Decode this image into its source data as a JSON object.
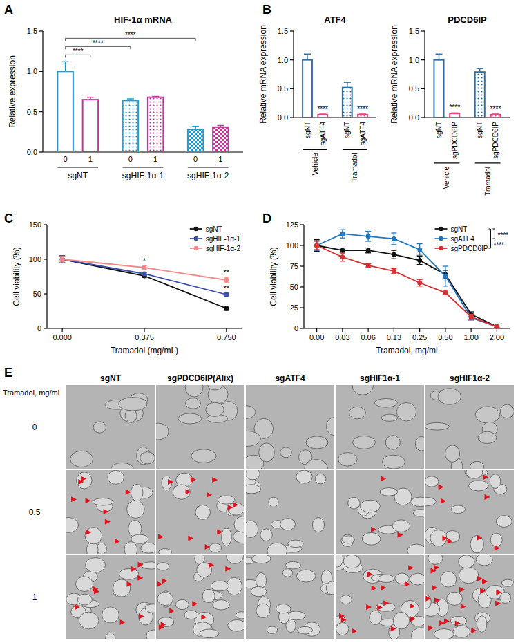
{
  "panels": [
    "A",
    "B",
    "C",
    "D",
    "E"
  ],
  "chart_data": [
    {
      "type": "bar",
      "title": "HIF-1α mRNA",
      "ylabel": "Relative expression",
      "categories": [
        "0",
        "1",
        "0",
        "1",
        "0",
        "1"
      ],
      "groups": [
        "sgNT",
        "sgHIF-1α-1",
        "sgHIF-1α-2"
      ],
      "values": [
        1.0,
        0.65,
        0.64,
        0.68,
        0.28,
        0.31
      ],
      "errors": [
        0.12,
        0.03,
        0.02,
        0.01,
        0.04,
        0.02
      ],
      "colors": [
        "#1e9ad6",
        "#c2379a",
        "#1e9ad6",
        "#c2379a",
        "#1e9ad6",
        "#c2379a"
      ],
      "ylim": [
        0,
        1.5
      ],
      "yticks": [
        {
          "value": 0,
          "label": "0.0"
        },
        0.5,
        {
          "value": 1,
          "label": "1.0"
        },
        1.5
      ],
      "brackets": [
        {
          "from": 0,
          "to": 1,
          "label": "****"
        },
        {
          "from": 0,
          "to": 2,
          "label": "****"
        },
        {
          "from": 0,
          "to": 4,
          "label": "****"
        }
      ]
    },
    {
      "type": "bar",
      "title": "ATF4",
      "ylabel": "Relative mRNA expression",
      "categories": [
        "sgNT",
        "sgATF4",
        "sgNT",
        "sgATF4"
      ],
      "groups": [
        "Vehicle",
        "Tramadol"
      ],
      "values": [
        1.0,
        0.05,
        0.52,
        0.05
      ],
      "errors": [
        0.1,
        0.01,
        0.09,
        0.01
      ],
      "colors": [
        "#2f6fa8",
        "#e8457c",
        "#2f6fa8",
        "#e8457c"
      ],
      "ylim": [
        0,
        1.5
      ],
      "yticks": [
        {
          "value": 0,
          "label": "0.0"
        },
        0.5,
        {
          "value": 1,
          "label": "1.0"
        },
        1.5
      ],
      "significance": [
        null,
        "****",
        null,
        "****"
      ]
    },
    {
      "type": "bar",
      "title": "PDCD6IP",
      "ylabel": "Relative mRNA expression",
      "categories": [
        "sgNT",
        "sgPDCD6IP",
        "sgNT",
        "sgPDCD6IP"
      ],
      "groups": [
        "Vehicle",
        "Tramadol"
      ],
      "values": [
        1.0,
        0.07,
        0.79,
        0.05
      ],
      "errors": [
        0.1,
        0.01,
        0.06,
        0.01
      ],
      "colors": [
        "#2f6fa8",
        "#e8457c",
        "#2f6fa8",
        "#e8457c"
      ],
      "ylim": [
        0,
        1.5
      ],
      "yticks": [
        {
          "value": 0,
          "label": "0.0"
        },
        0.5,
        {
          "value": 1,
          "label": "1.0"
        },
        1.5
      ],
      "significance": [
        null,
        "****",
        null,
        "****"
      ]
    },
    {
      "type": "line",
      "xlabel": "Tramadol (mg/mL)",
      "ylabel": "Cell viability (%)",
      "marker": "circle",
      "x": [
        0,
        0.375,
        0.75
      ],
      "xlim": [
        -0.07,
        0.82
      ],
      "xticks": [
        {
          "value": 0,
          "label": "0.000"
        },
        0.375,
        {
          "value": 0.75,
          "label": "0.750"
        }
      ],
      "ylim": [
        0,
        150
      ],
      "yticks": [
        0,
        50,
        100,
        150
      ],
      "legend": "top-right",
      "series": [
        {
          "name": "sgNT",
          "color": "#111111",
          "values": [
            100,
            76,
            29
          ],
          "errors": [
            5,
            2,
            3
          ]
        },
        {
          "name": "sgHIF-1α-1",
          "color": "#3b4fa8",
          "values": [
            100,
            79,
            49
          ],
          "errors": [
            5,
            2,
            2
          ],
          "significance": [
            null,
            null,
            "**"
          ]
        },
        {
          "name": "sgHIF-1α-2",
          "color": "#f08a8a",
          "values": [
            100,
            88,
            70
          ],
          "errors": [
            4,
            3,
            4
          ],
          "significance": [
            null,
            "*",
            "**"
          ]
        }
      ]
    },
    {
      "type": "line",
      "xlabel": "Tramadol, mg/ml",
      "ylabel": "Cell viability (%)",
      "marker": "circle",
      "categories": [
        "0.00",
        "0.03",
        "0.06",
        "0.13",
        "0.25",
        "0.50",
        "1.00",
        "2.00"
      ],
      "ylim": [
        0,
        125
      ],
      "yticks": [
        0,
        25,
        50,
        75,
        100,
        125
      ],
      "legend": "top-right",
      "series": [
        {
          "name": "sgNT",
          "color": "#111111",
          "values": [
            100,
            94,
            94,
            89,
            82,
            65,
            17,
            2
          ],
          "errors": [
            7,
            3,
            3,
            5,
            5,
            5,
            3,
            1
          ]
        },
        {
          "name": "sgATF4",
          "color": "#1f78c1",
          "values": [
            100,
            114,
            111,
            108,
            95,
            63,
            13,
            2
          ],
          "errors": [
            6,
            5,
            6,
            7,
            7,
            12,
            3,
            1
          ]
        },
        {
          "name": "sgPDCD6IP",
          "color": "#d63030",
          "values": [
            100,
            86,
            76,
            69,
            55,
            43,
            14,
            2
          ],
          "errors": [
            5,
            5,
            2,
            3,
            4,
            2,
            3,
            1
          ]
        }
      ],
      "comparisons": [
        {
          "series": [
            0,
            1
          ],
          "label": "****"
        },
        {
          "series": [
            0,
            2
          ],
          "label": "****"
        }
      ]
    }
  ],
  "panel_e": {
    "columns": [
      "sgNT",
      "sgPDCD6IP(Alix)",
      "sgATF4",
      "sgHIF1α-1",
      "sgHIF1α-2"
    ],
    "row_title": "Tramadol, mg/ml",
    "rows": [
      "0",
      "0.5",
      "1"
    ],
    "arrowheads": [
      [
        0,
        0,
        0,
        0,
        0
      ],
      [
        9,
        11,
        0,
        3,
        8
      ],
      [
        9,
        9,
        0,
        14,
        17
      ]
    ]
  }
}
